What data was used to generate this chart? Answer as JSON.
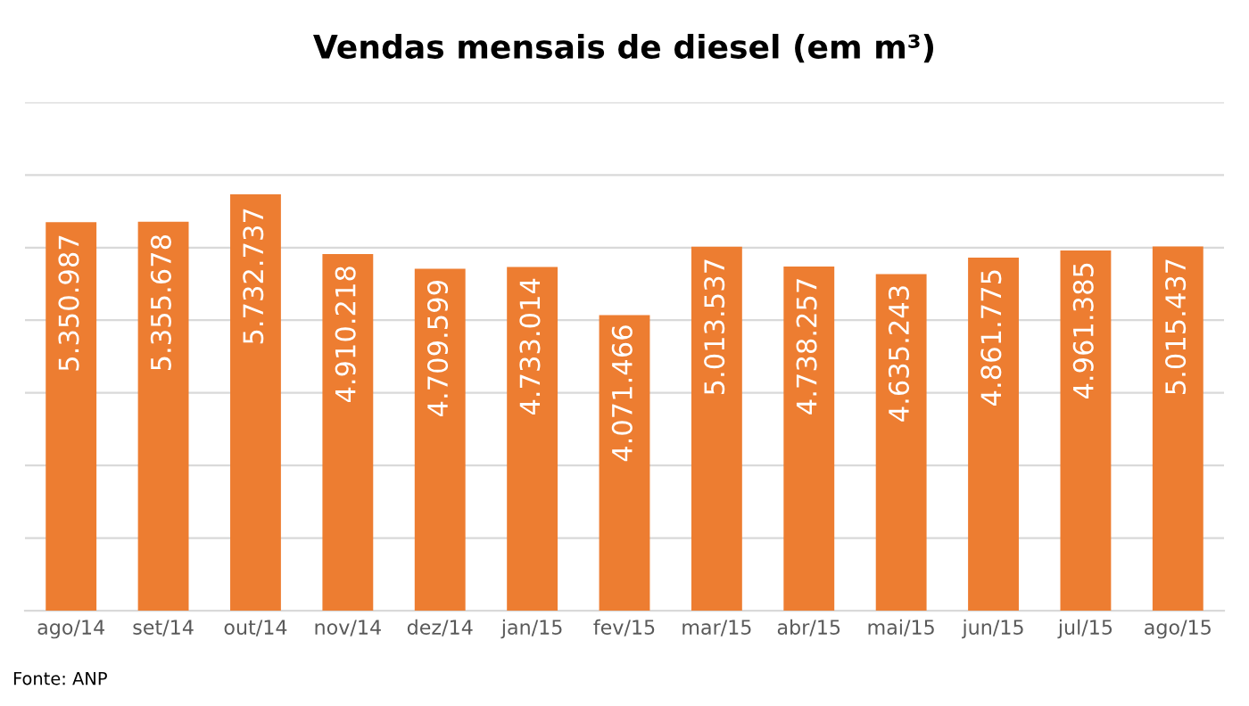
{
  "chart_data": {
    "type": "bar",
    "title": "Vendas mensais de diesel (em m³)",
    "categories": [
      "ago/14",
      "set/14",
      "out/14",
      "nov/14",
      "dez/14",
      "jan/15",
      "fev/15",
      "mar/15",
      "abr/15",
      "mai/15",
      "jun/15",
      "jul/15",
      "ago/15"
    ],
    "values": [
      5350987,
      5355678,
      5732737,
      4910218,
      4709599,
      4733014,
      4071466,
      5013537,
      4738257,
      4635243,
      4861775,
      4961385,
      5015437
    ],
    "value_labels": [
      "5.350.987",
      "5.355.678",
      "5.732.737",
      "4.910.218",
      "4.709.599",
      "4.733.014",
      "4.071.466",
      "5.013.537",
      "4.738.257",
      "4.635.243",
      "4.861.775",
      "4.961.385",
      "5.015.437"
    ],
    "color": "#ed7d31",
    "ylim": [
      0,
      7000000
    ],
    "yticks": [
      {
        "value": 0,
        "label": null
      },
      {
        "value": 1000000,
        "label": null
      },
      {
        "value": 2000000,
        "label": null
      },
      {
        "value": 3000000,
        "label": null
      },
      {
        "value": 4000000,
        "label": null
      },
      {
        "value": 5000000,
        "label": null
      },
      {
        "value": 6000000,
        "label": null
      },
      {
        "value": 7000000,
        "label": null
      }
    ],
    "tick_labels": "x",
    "grid": "y",
    "legend": false,
    "annotations": [
      "Fonte: ANP"
    ]
  }
}
